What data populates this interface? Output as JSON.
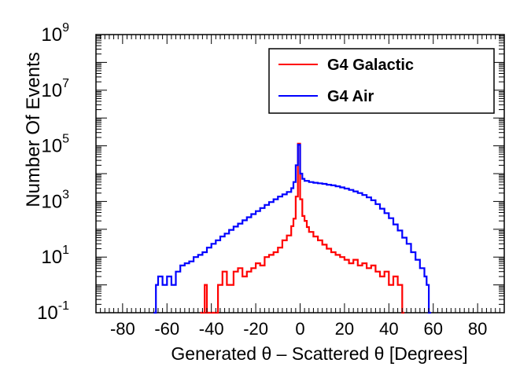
{
  "chart_data": {
    "type": "line",
    "xlabel": "Generated θ – Scattered θ [Degrees]",
    "ylabel": "Number Of Events",
    "xlim": [
      -92,
      92
    ],
    "ylim": [
      0.1,
      1000000000
    ],
    "log_y": true,
    "x_tick_labels": [
      "-80",
      "-60",
      "-40",
      "-20",
      "0",
      "20",
      "40",
      "60",
      "80"
    ],
    "x_ticks": [
      -80,
      -60,
      -40,
      -20,
      0,
      20,
      40,
      60,
      80
    ],
    "y_ticks": [
      {
        "base": "10",
        "exp": "-1",
        "value": 0.1
      },
      {
        "base": "10",
        "exp": "1",
        "value": 10
      },
      {
        "base": "10",
        "exp": "3",
        "value": 1000
      },
      {
        "base": "10",
        "exp": "5",
        "value": 100000
      },
      {
        "base": "10",
        "exp": "7",
        "value": 10000000
      },
      {
        "base": "10",
        "exp": "9",
        "value": 1000000000
      }
    ],
    "legend_position": "top-right",
    "grid": false,
    "series": [
      {
        "name": "G4 Galactic",
        "color": "#ff0000",
        "x": [
          -45,
          -43,
          -42,
          -37,
          -35,
          -33,
          -30,
          -28,
          -26,
          -24,
          -22,
          -20,
          -18,
          -16,
          -14,
          -12,
          -10,
          -8,
          -6,
          -4,
          -3,
          -2,
          -1,
          0,
          1,
          2,
          3,
          4,
          6,
          8,
          10,
          12,
          14,
          16,
          18,
          20,
          22,
          24,
          26,
          28,
          30,
          32,
          34,
          36,
          38,
          40,
          42,
          44,
          46
        ],
        "y": [
          0.1,
          1,
          0.1,
          1,
          3,
          1,
          3,
          4,
          2,
          3,
          4,
          6,
          5,
          10,
          12,
          15,
          22,
          40,
          60,
          130,
          240,
          1500,
          120000,
          1200,
          300,
          200,
          120,
          80,
          55,
          40,
          28,
          20,
          15,
          12,
          10,
          8,
          6,
          8,
          5,
          6,
          4,
          5,
          3,
          2,
          3,
          1,
          2,
          1,
          0.1
        ]
      },
      {
        "name": "G4 Air",
        "color": "#0000ff",
        "x": [
          -66,
          -65,
          -64,
          -62,
          -60,
          -58,
          -56,
          -54,
          -52,
          -50,
          -48,
          -46,
          -44,
          -42,
          -40,
          -38,
          -36,
          -34,
          -32,
          -30,
          -28,
          -26,
          -24,
          -22,
          -20,
          -18,
          -16,
          -14,
          -12,
          -10,
          -8,
          -6,
          -4,
          -3,
          -2,
          -1,
          0,
          1,
          2,
          4,
          6,
          8,
          10,
          12,
          14,
          16,
          18,
          20,
          22,
          24,
          26,
          28,
          30,
          32,
          34,
          36,
          38,
          40,
          42,
          44,
          46,
          48,
          50,
          52,
          54,
          56,
          57,
          58
        ],
        "y": [
          0.1,
          1,
          2,
          1,
          2,
          1,
          3,
          5,
          6,
          7,
          10,
          12,
          15,
          22,
          30,
          40,
          55,
          70,
          95,
          125,
          160,
          210,
          270,
          350,
          450,
          580,
          750,
          950,
          1200,
          1500,
          1800,
          2200,
          3000,
          5000,
          20000,
          110000,
          10000,
          6500,
          5500,
          5000,
          4700,
          4500,
          4300,
          4000,
          3800,
          3500,
          3200,
          2900,
          2600,
          2300,
          2000,
          1700,
          1400,
          1100,
          800,
          550,
          380,
          250,
          150,
          90,
          50,
          30,
          15,
          8,
          4,
          2,
          1,
          0.1
        ]
      }
    ]
  }
}
